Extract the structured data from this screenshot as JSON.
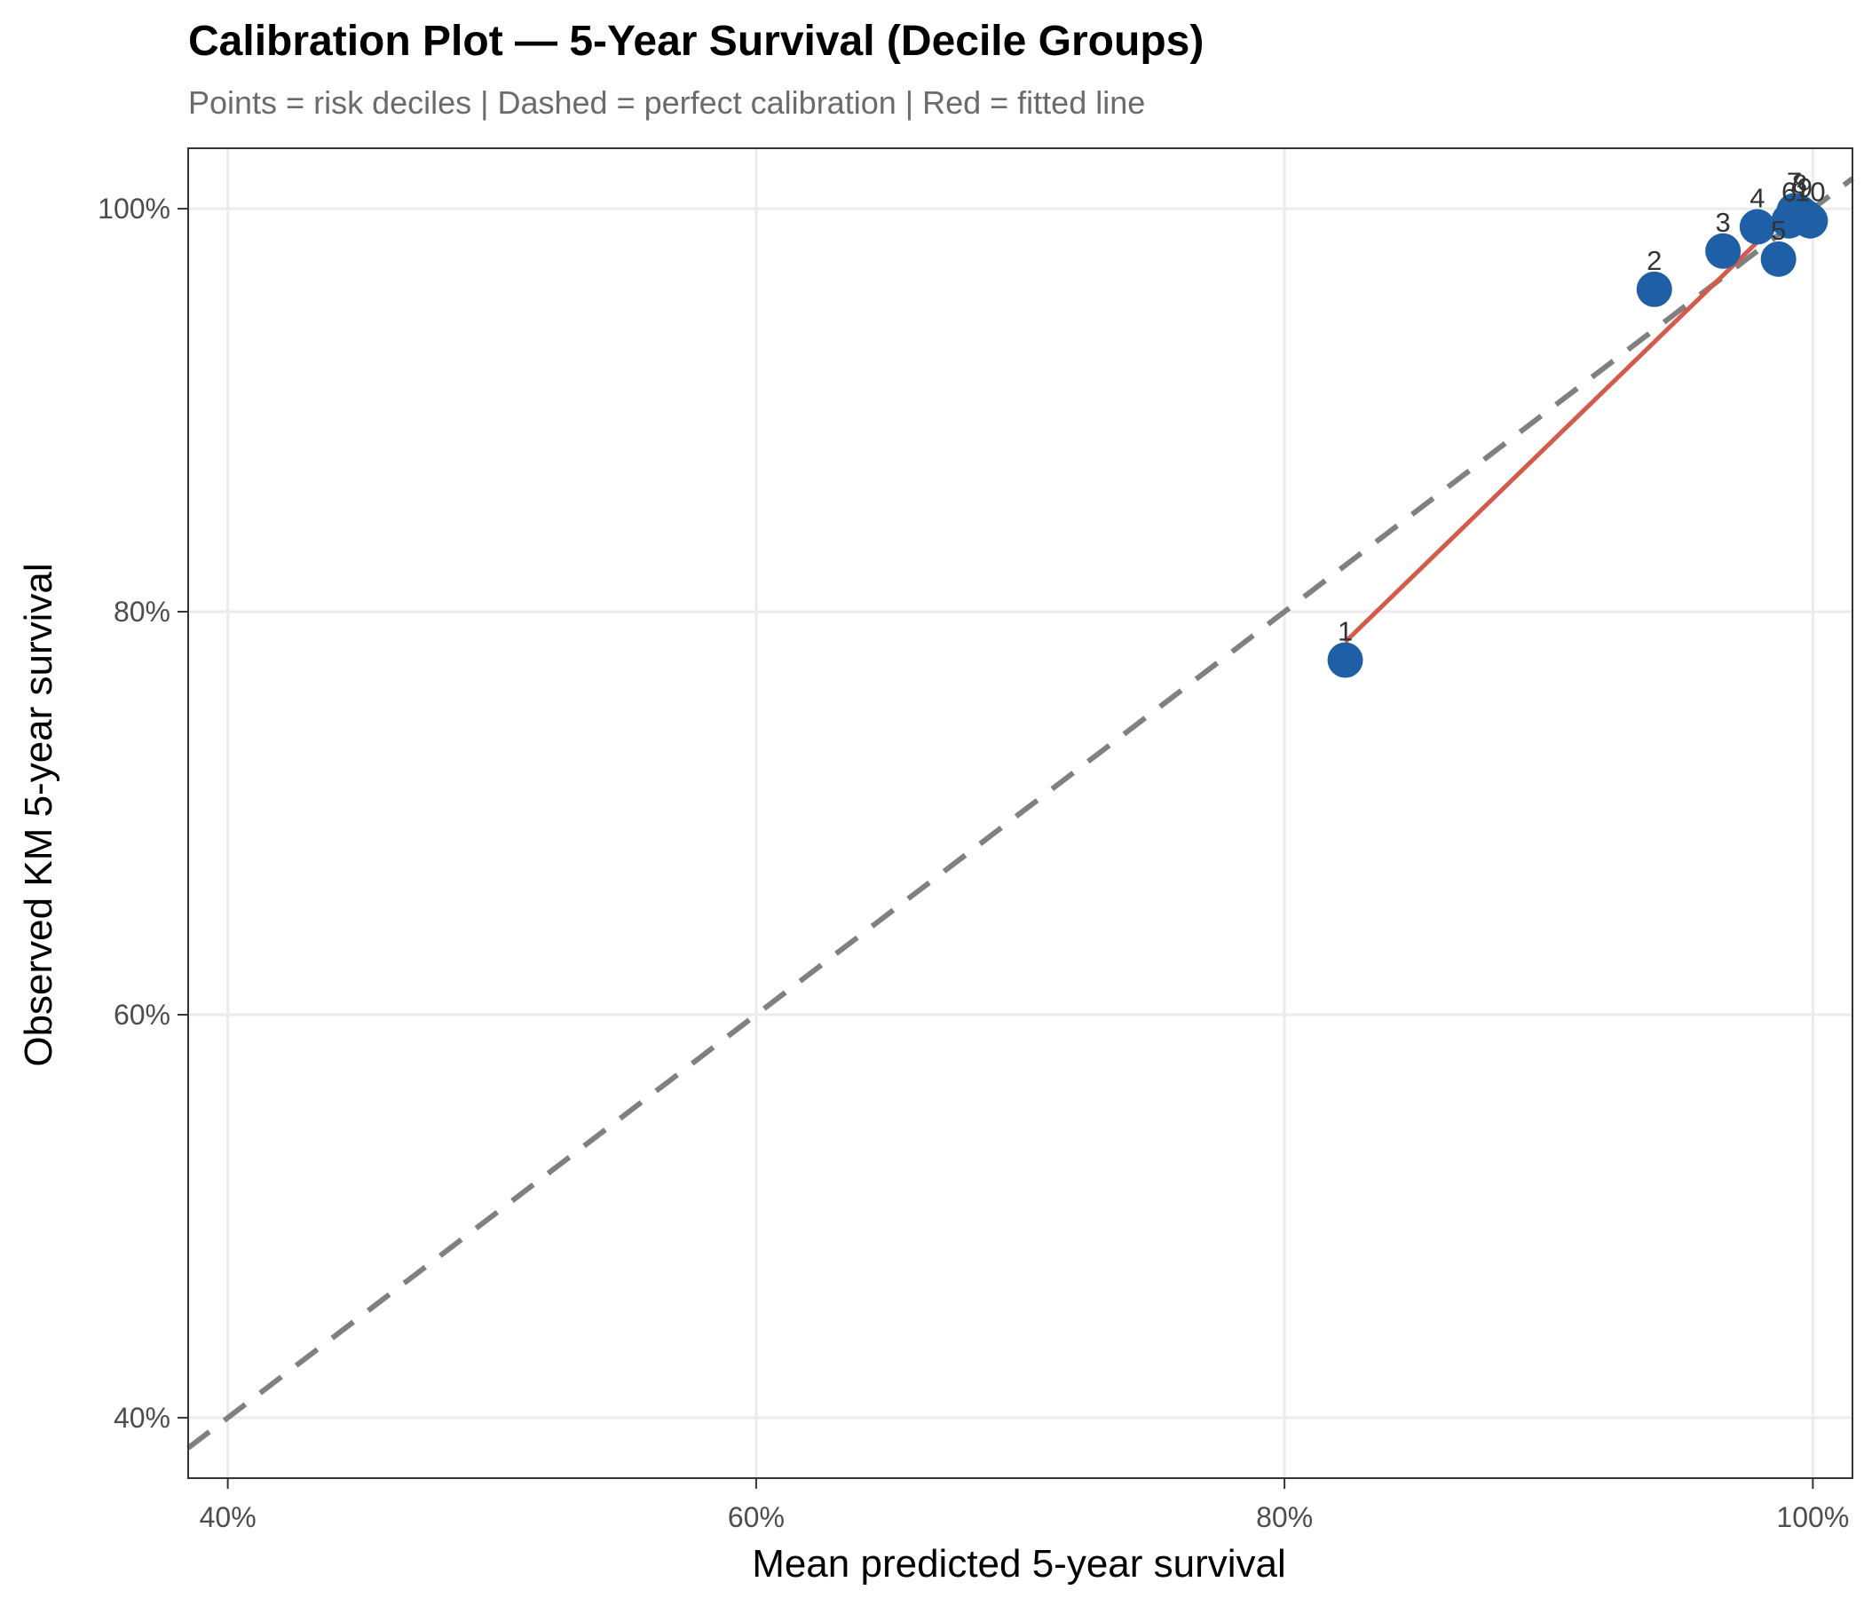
{
  "chart_data": {
    "type": "scatter",
    "title": "Calibration Plot — 5-Year Survival (Decile Groups)",
    "subtitle": "Points = risk deciles | Dashed = perfect calibration | Red = fitted line",
    "xlabel": "Mean predicted 5-year survival",
    "ylabel": "Observed KM 5-year survival",
    "xlim": [
      0.385,
      1.015
    ],
    "ylim": [
      0.37,
      1.03
    ],
    "x_ticks": [
      0.4,
      0.6,
      0.8,
      1.0
    ],
    "y_ticks": [
      0.4,
      0.6,
      0.8,
      1.0
    ],
    "x_tick_labels": [
      "40%",
      "60%",
      "80%",
      "100%"
    ],
    "y_tick_labels": [
      "40%",
      "60%",
      "80%",
      "100%"
    ],
    "grid": true,
    "points": [
      {
        "label": "1",
        "x": 0.823,
        "y": 0.776
      },
      {
        "label": "2",
        "x": 0.94,
        "y": 0.96
      },
      {
        "label": "3",
        "x": 0.966,
        "y": 0.979
      },
      {
        "label": "4",
        "x": 0.979,
        "y": 0.991
      },
      {
        "label": "5",
        "x": 0.987,
        "y": 0.975
      },
      {
        "label": "6",
        "x": 0.991,
        "y": 0.994
      },
      {
        "label": "7",
        "x": 0.993,
        "y": 0.999
      },
      {
        "label": "8",
        "x": 0.995,
        "y": 0.998
      },
      {
        "label": "9",
        "x": 0.997,
        "y": 0.996
      },
      {
        "label": "10",
        "x": 0.999,
        "y": 0.994
      }
    ],
    "reference_line": {
      "from": [
        0.385,
        0.385
      ],
      "to": [
        1.015,
        1.015
      ],
      "style": "dashed"
    },
    "fitted_line": {
      "from": [
        0.823,
        0.785
      ],
      "to": [
        0.992,
        1.0
      ]
    },
    "colors": {
      "points": "#1f5fa6",
      "fitted_line": "#d25b4c",
      "reference_line": "#808080",
      "grid": "#ebebeb",
      "panel_border": "#333333"
    }
  }
}
